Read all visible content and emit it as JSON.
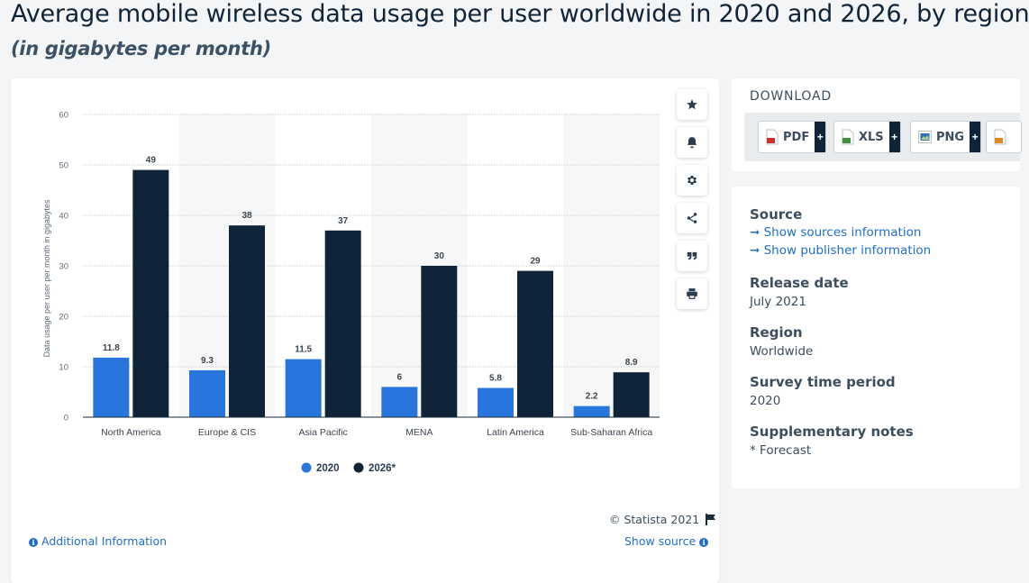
{
  "header": {
    "title": "Average mobile wireless data usage per user worldwide in 2020 and 2026, by region",
    "subtitle": "(in gigabytes per month)"
  },
  "chart_data": {
    "type": "bar",
    "categories": [
      "North America",
      "Europe & CIS",
      "Asia Pacific",
      "MENA",
      "Latin America",
      "Sub-Saharan Africa"
    ],
    "series": [
      {
        "name": "2020",
        "values": [
          11.8,
          9.3,
          11.5,
          6,
          5.8,
          2.2
        ],
        "labels": [
          "11.8",
          "9.3",
          "11.5",
          "6",
          "5.8",
          "2.2"
        ],
        "color": "#2876dd"
      },
      {
        "name": "2026*",
        "values": [
          49,
          38,
          37,
          30,
          29,
          8.9
        ],
        "labels": [
          "49",
          "38",
          "37",
          "30",
          "29",
          "8.9"
        ],
        "color": "#0f2439"
      }
    ],
    "ylabel": "Data usage per user per month in gigabytes",
    "xlabel": "",
    "ylim": [
      0,
      60
    ],
    "yticks": [
      "0",
      "10",
      "20",
      "30",
      "40",
      "50",
      "60"
    ],
    "grid": true,
    "legend": "bottom"
  },
  "chart_footer": {
    "copyright": "© Statista 2021",
    "additional_info": "Additional Information",
    "show_source": "Show source"
  },
  "toolbar": {
    "icons": [
      "star-icon",
      "bell-icon",
      "gear-icon",
      "share-icon",
      "quote-icon",
      "print-icon"
    ]
  },
  "download": {
    "title": "DOWNLOAD",
    "buttons": [
      {
        "label": "PDF",
        "color": "#c8322f"
      },
      {
        "label": "XLS",
        "color": "#3d8f3a"
      },
      {
        "label": "PNG",
        "color": "#2b6fb8"
      },
      {
        "label": "",
        "color": "#e08a1e"
      }
    ]
  },
  "details": {
    "source_label": "Source",
    "show_sources": "Show sources information",
    "show_publisher": "Show publisher information",
    "release_label": "Release date",
    "release_value": "July 2021",
    "region_label": "Region",
    "region_value": "Worldwide",
    "survey_label": "Survey time period",
    "survey_value": "2020",
    "notes_label": "Supplementary notes",
    "notes_value": "* Forecast"
  }
}
